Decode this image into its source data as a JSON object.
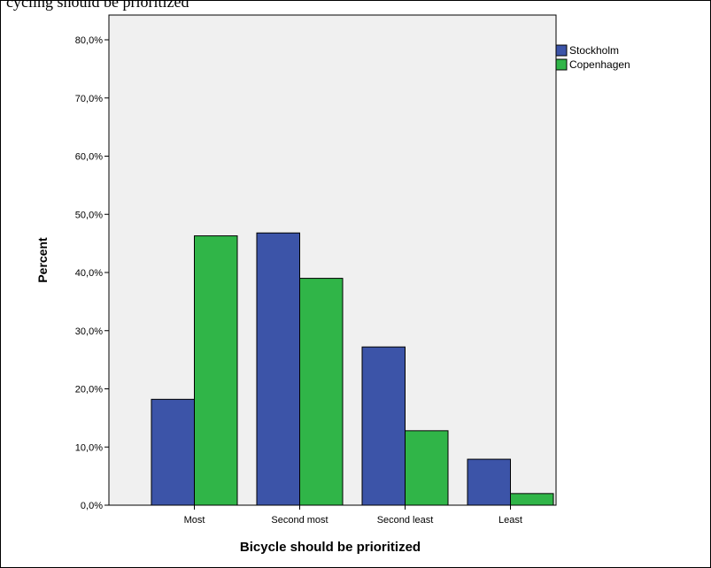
{
  "caption": "cycling should be prioritized",
  "chart_data": {
    "type": "bar",
    "categories": [
      "Most",
      "Second most",
      "Second least",
      "Least"
    ],
    "series": [
      {
        "name": "Stockholm",
        "values": [
          18.2,
          46.8,
          27.2,
          7.9
        ],
        "color": "#3c54a8"
      },
      {
        "name": "Copenhagen",
        "values": [
          46.3,
          39.0,
          12.8,
          2.0
        ],
        "color": "#30b548"
      }
    ],
    "xlabel": "Bicycle should be prioritized",
    "ylabel": "Percent",
    "ylim": [
      0,
      80
    ],
    "yticks": [
      "0,0%",
      "10,0%",
      "20,0%",
      "30,0%",
      "40,0%",
      "50,0%",
      "60,0%",
      "70,0%",
      "80,0%"
    ],
    "ytick_values": [
      0,
      10,
      20,
      30,
      40,
      50,
      60,
      70,
      80
    ],
    "legend_position": "top-right",
    "plot_background": "#f0f0f0",
    "grid": false
  }
}
